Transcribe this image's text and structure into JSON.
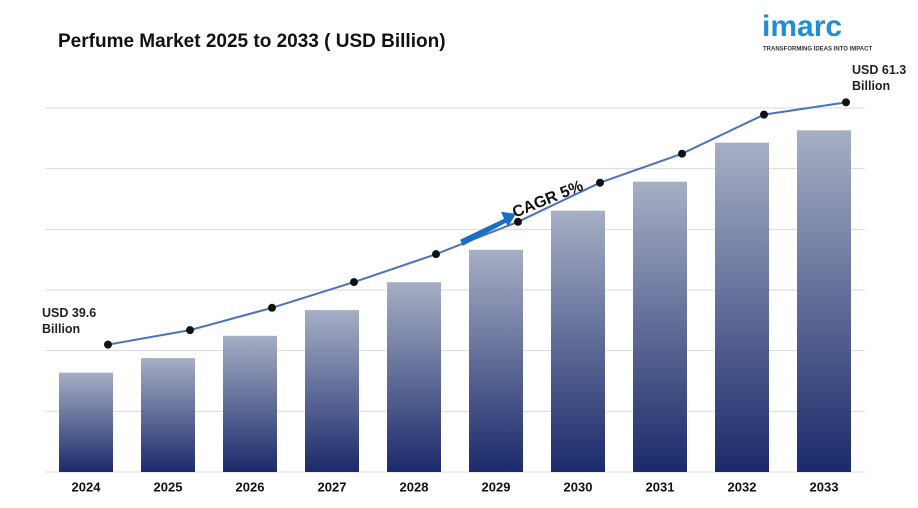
{
  "logo": {
    "name": "imarc",
    "tagline": "TRANSFORMING IDEAS INTO IMPACT"
  },
  "chart_data": {
    "type": "bar",
    "title": "Perfume Market 2025 to 2033 ( USD Billion)",
    "categories": [
      "2024",
      "2025",
      "2026",
      "2027",
      "2028",
      "2029",
      "2030",
      "2031",
      "2032",
      "2033"
    ],
    "values": [
      39.6,
      40.9,
      42.9,
      45.2,
      47.7,
      50.6,
      54.1,
      56.7,
      60.2,
      61.3
    ],
    "value_labels": [
      "USD 39.6 Billion",
      null,
      null,
      null,
      null,
      null,
      null,
      null,
      null,
      "USD 61.3 Billion"
    ],
    "annotation": "CAGR 5%",
    "ylim": [
      30.7,
      63.3
    ],
    "grid": true,
    "color": "#1b2a6b",
    "line_color": "#4a72c0"
  }
}
